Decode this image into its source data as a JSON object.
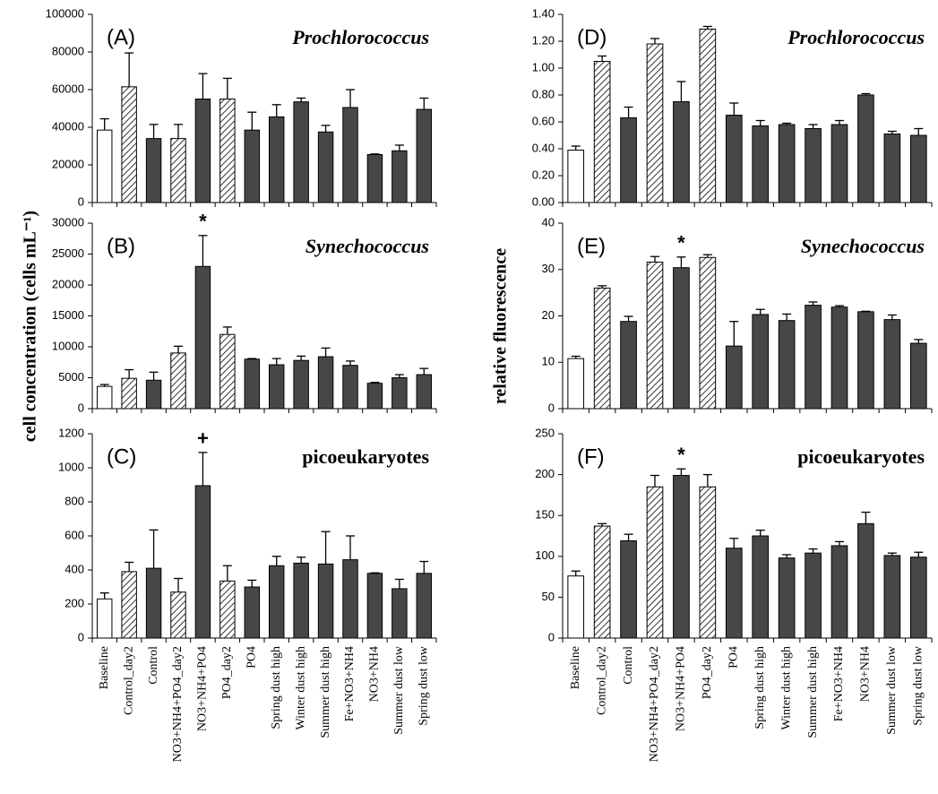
{
  "chart_data": [
    {
      "type": "bar",
      "panel": "(A)",
      "title": "Prochlorococcus",
      "title_italic": true,
      "values": [
        38500,
        61500,
        34000,
        34000,
        55000,
        55000,
        38500,
        45500,
        53500,
        37500,
        50500,
        25500,
        27500,
        49500
      ],
      "errors": [
        6000,
        18000,
        7500,
        7500,
        13500,
        11000,
        9500,
        6500,
        2000,
        3500,
        9500,
        300,
        3000,
        6000
      ],
      "bar_styles": [
        "open",
        "hatched",
        "solid",
        "hatched",
        "solid",
        "hatched",
        "solid",
        "solid",
        "solid",
        "solid",
        "solid",
        "solid",
        "solid",
        "solid"
      ],
      "ylim": [
        0,
        100000
      ],
      "yticks": [
        0,
        20000,
        40000,
        60000,
        80000,
        100000
      ]
    },
    {
      "type": "bar",
      "panel": "(B)",
      "title": "Synechococcus",
      "title_italic": true,
      "ylabel": "cell concentration (cells mL⁻¹)",
      "values": [
        3600,
        4900,
        4600,
        9000,
        23000,
        12000,
        8000,
        7100,
        7800,
        8400,
        7000,
        4100,
        5000,
        5500
      ],
      "errors": [
        300,
        1400,
        1300,
        1100,
        5000,
        1200,
        100,
        1000,
        700,
        1400,
        700,
        150,
        500,
        1000
      ],
      "bar_styles": [
        "open",
        "hatched",
        "solid",
        "hatched",
        "solid",
        "hatched",
        "solid",
        "solid",
        "solid",
        "solid",
        "solid",
        "solid",
        "solid",
        "solid"
      ],
      "annotations": [
        {
          "text": "*",
          "category_index": 4
        }
      ],
      "ylim": [
        0,
        30000
      ],
      "yticks": [
        0,
        5000,
        10000,
        15000,
        20000,
        25000,
        30000
      ]
    },
    {
      "type": "bar",
      "panel": "(C)",
      "title": "picoeukaryotes",
      "title_italic": false,
      "categories": [
        "Baseline",
        "Control_day2",
        "Control",
        "NO3+NH4+PO4_day2",
        "NO3+NH4+PO4",
        "PO4_day2",
        "PO4",
        "Spring dust high",
        "Winter dust high",
        "Summer dust high",
        "Fe+NO3+NH4",
        "NO3+NH4",
        "Summer dust low",
        "Spring dust low"
      ],
      "values": [
        230,
        390,
        410,
        270,
        895,
        335,
        300,
        425,
        440,
        435,
        460,
        380,
        290,
        380
      ],
      "errors": [
        35,
        55,
        225,
        80,
        195,
        90,
        40,
        55,
        35,
        190,
        140,
        3,
        55,
        70
      ],
      "bar_styles": [
        "open",
        "hatched",
        "solid",
        "hatched",
        "solid",
        "hatched",
        "solid",
        "solid",
        "solid",
        "solid",
        "solid",
        "solid",
        "solid",
        "solid"
      ],
      "annotations": [
        {
          "text": "+",
          "category_index": 4
        }
      ],
      "ylim": [
        0,
        1200
      ],
      "yticks": [
        0,
        200,
        400,
        600,
        800,
        1000,
        1200
      ]
    },
    {
      "type": "bar",
      "panel": "(D)",
      "title": "Prochlorococcus",
      "title_italic": true,
      "values": [
        0.39,
        1.05,
        0.63,
        1.18,
        0.75,
        1.29,
        0.65,
        0.57,
        0.58,
        0.55,
        0.58,
        0.8,
        0.51,
        0.5
      ],
      "errors": [
        0.03,
        0.04,
        0.08,
        0.04,
        0.15,
        0.02,
        0.09,
        0.04,
        0.01,
        0.03,
        0.03,
        0.01,
        0.02,
        0.05
      ],
      "bar_styles": [
        "open",
        "hatched",
        "solid",
        "hatched",
        "solid",
        "hatched",
        "solid",
        "solid",
        "solid",
        "solid",
        "solid",
        "solid",
        "solid",
        "solid"
      ],
      "ylim": [
        0,
        1.4
      ],
      "yticks": [
        {
          "value": 0,
          "label": "0.00"
        },
        {
          "value": 0.2,
          "label": "0.20"
        },
        {
          "value": 0.4,
          "label": "0.40"
        },
        {
          "value": 0.6,
          "label": "0.60"
        },
        {
          "value": 0.8,
          "label": "0.80"
        },
        {
          "value": 1,
          "label": "1.00"
        },
        {
          "value": 1.2,
          "label": "1.20"
        },
        {
          "value": 1.4,
          "label": "1.40"
        }
      ]
    },
    {
      "type": "bar",
      "panel": "(E)",
      "title": "Synechococcus",
      "title_italic": true,
      "ylabel": "relative  fluorescence",
      "values": [
        10.8,
        26,
        18.8,
        31.6,
        30.4,
        32.6,
        13.5,
        20.3,
        19,
        22.3,
        21.9,
        20.9,
        19.2,
        14.1
      ],
      "errors": [
        0.5,
        0.5,
        1.1,
        1.2,
        2.3,
        0.6,
        5.3,
        1.1,
        1.4,
        0.7,
        0.3,
        0.1,
        1,
        0.8
      ],
      "bar_styles": [
        "open",
        "hatched",
        "solid",
        "hatched",
        "solid",
        "hatched",
        "solid",
        "solid",
        "solid",
        "solid",
        "solid",
        "solid",
        "solid",
        "solid"
      ],
      "annotations": [
        {
          "text": "*",
          "category_index": 4
        }
      ],
      "ylim": [
        0,
        40
      ],
      "yticks": [
        0,
        10,
        20,
        30,
        40
      ]
    },
    {
      "type": "bar",
      "panel": "(F)",
      "title": "picoeukaryotes",
      "title_italic": false,
      "categories": [
        "Baseline",
        "Control_day2",
        "Control",
        "NO3+NH4+PO4_day2",
        "NO3+NH4+PO4",
        "PO4_day2",
        "PO4",
        "Spring dust high",
        "Winter dust high",
        "Summer dust high",
        "Fe+NO3+NH4",
        "NO3+NH4",
        "Summer dust low",
        "Spring dust low"
      ],
      "values": [
        76,
        137,
        119,
        185,
        199,
        185,
        110,
        125,
        98,
        104,
        113,
        140,
        101,
        99
      ],
      "errors": [
        6,
        3,
        8,
        14,
        8,
        15,
        12,
        7,
        4,
        5,
        5,
        14,
        3,
        6
      ],
      "bar_styles": [
        "open",
        "hatched",
        "solid",
        "hatched",
        "solid",
        "hatched",
        "solid",
        "solid",
        "solid",
        "solid",
        "solid",
        "solid",
        "solid",
        "solid"
      ],
      "annotations": [
        {
          "text": "*",
          "category_index": 4
        }
      ],
      "ylim": [
        0,
        250
      ],
      "yticks": [
        0,
        50,
        100,
        150,
        200,
        250
      ]
    }
  ]
}
